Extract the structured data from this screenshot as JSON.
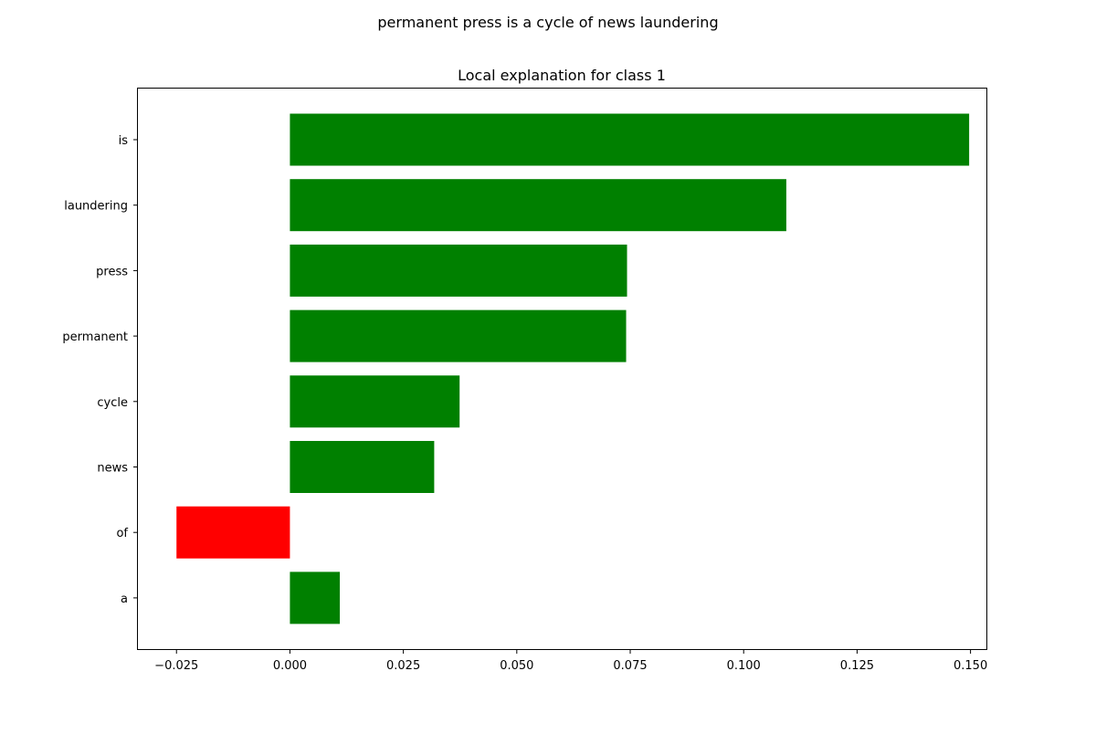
{
  "figure": {
    "suptitle": "permanent press is a cycle of news laundering"
  },
  "chart_data": {
    "type": "bar",
    "orientation": "horizontal",
    "title": "Local explanation for class 1",
    "xlabel": "",
    "ylabel": "",
    "xlim": [
      -0.0335,
      0.1535
    ],
    "categories": [
      "is",
      "laundering",
      "press",
      "permanent",
      "cycle",
      "news",
      "of",
      "a"
    ],
    "values": [
      0.1497,
      0.1094,
      0.0743,
      0.0741,
      0.0374,
      0.0318,
      -0.025,
      0.011
    ],
    "positive_color": "#008000",
    "negative_color": "#ff0000",
    "x_ticks": [
      -0.025,
      0.0,
      0.025,
      0.05,
      0.075,
      0.1,
      0.125,
      0.15
    ],
    "x_tick_labels": [
      "−0.025",
      "0.000",
      "0.025",
      "0.050",
      "0.075",
      "0.100",
      "0.125",
      "0.150"
    ],
    "grid": false,
    "legend": "none"
  }
}
